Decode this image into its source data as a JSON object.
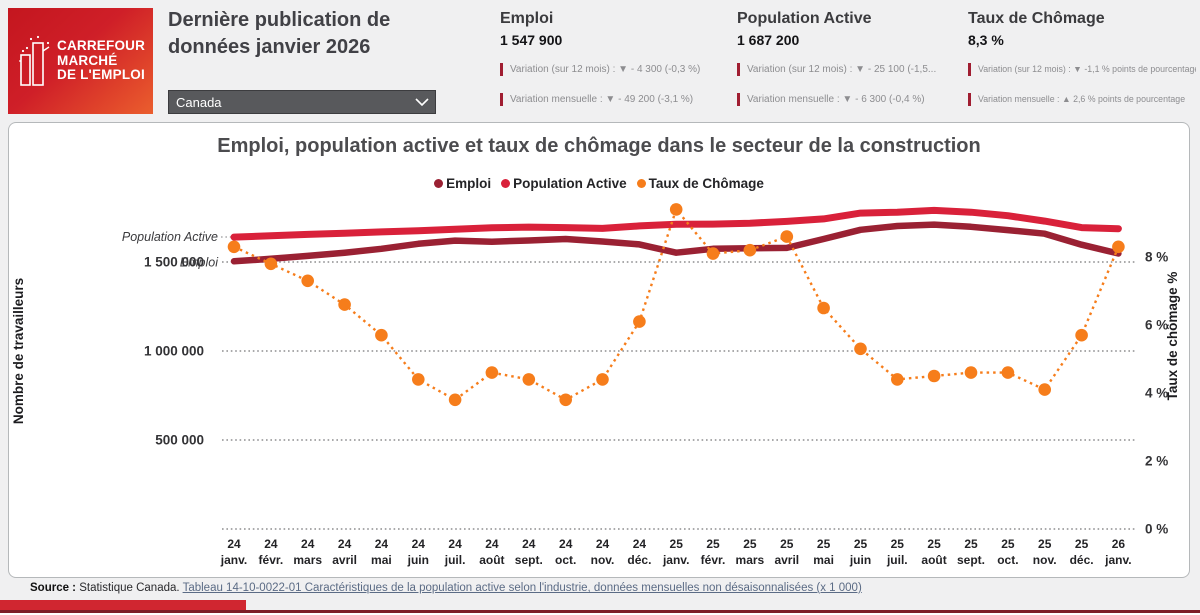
{
  "logo": {
    "line1": "CARREFOUR",
    "line2": "MARCHÉ",
    "line3": "DE L'EMPLOI"
  },
  "header": {
    "title_line1": "Dernière publication de",
    "title_line2": "données janvier 2026",
    "region_select": {
      "value": "Canada"
    }
  },
  "kpis": [
    {
      "title": "Emploi",
      "value": "1 547 900",
      "yoy": "Variation (sur 12 mois) : ▼ - 4 300 (-0,3 %)",
      "monthly": "Variation mensuelle : ▼ - 49 200 (-3,1 %)"
    },
    {
      "title": "Population Active",
      "value": "1 687 200",
      "yoy": "Variation (sur 12 mois) : ▼ - 25 100 (-1,5...",
      "monthly": "Variation mensuelle : ▼ - 6 300 (-0,4 %)"
    },
    {
      "title": "Taux de Chômage",
      "value": "8,3 %",
      "yoy": "Variation (sur 12 mois) : ▼ -1,1 % points de pourcentage",
      "monthly": "Variation mensuelle : ▲ 2,6 % points de pourcentage"
    }
  ],
  "chart_data": {
    "type": "line",
    "title": "Emploi, population active et taux de chômage dans le secteur de la construction",
    "grid": true,
    "legend_position": "top",
    "legend": [
      {
        "label": "Emploi",
        "color": "#9a2133"
      },
      {
        "label": "Population Active",
        "color": "#d9213a"
      },
      {
        "label": "Taux de Chômage",
        "color": "#f67d1b"
      }
    ],
    "x_ticks": [
      {
        "year": "24",
        "month": "janv."
      },
      {
        "year": "24",
        "month": "févr."
      },
      {
        "year": "24",
        "month": "mars"
      },
      {
        "year": "24",
        "month": "avril"
      },
      {
        "year": "24",
        "month": "mai"
      },
      {
        "year": "24",
        "month": "juin"
      },
      {
        "year": "24",
        "month": "juil."
      },
      {
        "year": "24",
        "month": "août"
      },
      {
        "year": "24",
        "month": "sept."
      },
      {
        "year": "24",
        "month": "oct."
      },
      {
        "year": "24",
        "month": "nov."
      },
      {
        "year": "24",
        "month": "déc."
      },
      {
        "year": "25",
        "month": "janv."
      },
      {
        "year": "25",
        "month": "févr."
      },
      {
        "year": "25",
        "month": "mars"
      },
      {
        "year": "25",
        "month": "avril"
      },
      {
        "year": "25",
        "month": "mai"
      },
      {
        "year": "25",
        "month": "juin"
      },
      {
        "year": "25",
        "month": "juil."
      },
      {
        "year": "25",
        "month": "août"
      },
      {
        "year": "25",
        "month": "sept."
      },
      {
        "year": "25",
        "month": "oct."
      },
      {
        "year": "25",
        "month": "nov."
      },
      {
        "year": "25",
        "month": "déc."
      },
      {
        "year": "26",
        "month": "janv."
      }
    ],
    "left_axis": {
      "title": "Nombre de travailleurs",
      "range": [
        0,
        1820000
      ],
      "ticks": [
        {
          "label": "500 000",
          "value": 500000
        },
        {
          "label": "1 000 000",
          "value": 1000000
        },
        {
          "label": "1 500 000",
          "value": 1500000
        }
      ]
    },
    "right_axis": {
      "title": "Taux de chômage %",
      "range": [
        0,
        9.6
      ],
      "ticks": [
        {
          "label": "0 %",
          "value": 0
        },
        {
          "label": "2 %",
          "value": 2
        },
        {
          "label": "4 %",
          "value": 4
        },
        {
          "label": "6 %",
          "value": 6
        },
        {
          "label": "8 %",
          "value": 8
        }
      ]
    },
    "series": [
      {
        "name": "Population Active",
        "axis": "left",
        "style": "solid",
        "color": "#d9213a",
        "values": [
          1640000,
          1647000,
          1655000,
          1662000,
          1669000,
          1676000,
          1684000,
          1692000,
          1696000,
          1693000,
          1689000,
          1703000,
          1712300,
          1713000,
          1718000,
          1728000,
          1742000,
          1775000,
          1780000,
          1790000,
          1780000,
          1760000,
          1730000,
          1693500,
          1687200
        ]
      },
      {
        "name": "Emploi",
        "axis": "left",
        "style": "solid",
        "color": "#9a2133",
        "values": [
          1504000,
          1518000,
          1534000,
          1552000,
          1574000,
          1602000,
          1620000,
          1614000,
          1621000,
          1629000,
          1615000,
          1599000,
          1552200,
          1574000,
          1577000,
          1579000,
          1629000,
          1681000,
          1702000,
          1710000,
          1698000,
          1679000,
          1659000,
          1597100,
          1547900
        ]
      },
      {
        "name": "Taux de Chômage",
        "axis": "right",
        "style": "dotted-markers",
        "color": "#f67d1b",
        "values": [
          8.3,
          7.8,
          7.3,
          6.6,
          5.7,
          4.4,
          3.8,
          4.6,
          4.4,
          3.8,
          4.4,
          6.1,
          9.4,
          8.1,
          8.2,
          8.6,
          6.5,
          5.3,
          4.4,
          4.5,
          4.6,
          4.6,
          4.1,
          5.7,
          8.3
        ]
      }
    ],
    "inline_labels": [
      {
        "text": "Population Active",
        "series": "Population Active"
      },
      {
        "text": "Emploi",
        "series": "Emploi"
      }
    ]
  },
  "source": {
    "prefix": "Source :",
    "text": " Statistique Canada. ",
    "link": "Tableau 14-10-0022-01 Caractéristiques de la population active selon l'industrie, données mensuelles non désaisonnalisées (x 1 000)"
  }
}
